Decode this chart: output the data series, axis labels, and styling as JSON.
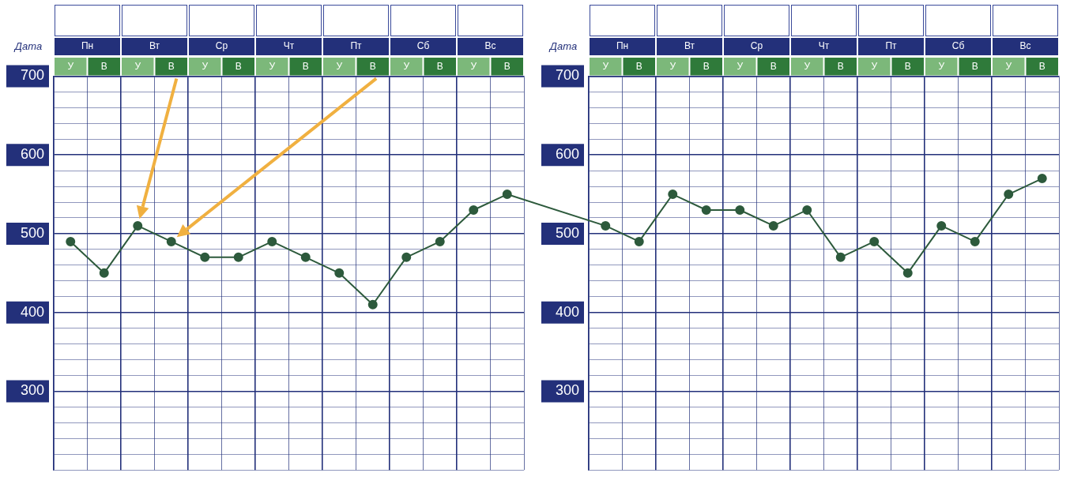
{
  "chart_data": [
    {
      "type": "line",
      "categories": [
        "У",
        "В",
        "У",
        "В",
        "У",
        "В",
        "У",
        "В",
        "У",
        "В",
        "У",
        "В",
        "У",
        "В"
      ],
      "series": [
        {
          "color": "#2d5a3c",
          "values": [
            490,
            450,
            510,
            490,
            470,
            470,
            490,
            470,
            450,
            410,
            470,
            490,
            530,
            550
          ]
        }
      ],
      "ylim": [
        200,
        700
      ],
      "yticks": [
        {
          "value": 200,
          "label": null
        },
        {
          "value": 220,
          "label": null
        },
        {
          "value": 240,
          "label": null
        },
        {
          "value": 260,
          "label": null
        },
        {
          "value": 280,
          "label": null
        },
        300,
        {
          "value": 320,
          "label": null
        },
        {
          "value": 340,
          "label": null
        },
        {
          "value": 360,
          "label": null
        },
        {
          "value": 380,
          "label": null
        },
        400,
        {
          "value": 420,
          "label": null
        },
        {
          "value": 440,
          "label": null
        },
        {
          "value": 460,
          "label": null
        },
        {
          "value": 480,
          "label": null
        },
        500,
        {
          "value": 520,
          "label": null
        },
        {
          "value": 540,
          "label": null
        },
        {
          "value": 560,
          "label": null
        },
        {
          "value": 580,
          "label": null
        },
        600,
        {
          "value": 620,
          "label": null
        },
        {
          "value": 640,
          "label": null
        },
        {
          "value": 660,
          "label": null
        },
        {
          "value": 680,
          "label": null
        },
        700
      ],
      "grid": true,
      "marker": "circle",
      "annotations": [
        "Дата",
        "Пн",
        "Вт",
        "Ср",
        "Чт",
        "Пт",
        "Сб",
        "Вс"
      ]
    },
    {
      "type": "line",
      "categories": [
        "У",
        "В",
        "У",
        "В",
        "У",
        "В",
        "У",
        "В",
        "У",
        "В",
        "У",
        "В",
        "У",
        "В"
      ],
      "series": [
        {
          "color": "#2d5a3c",
          "values": [
            510,
            490,
            550,
            530,
            530,
            510,
            530,
            470,
            490,
            450,
            510,
            490,
            550,
            570
          ]
        }
      ],
      "ylim": [
        200,
        700
      ],
      "yticks": [
        {
          "value": 200,
          "label": null
        },
        {
          "value": 220,
          "label": null
        },
        {
          "value": 240,
          "label": null
        },
        {
          "value": 260,
          "label": null
        },
        {
          "value": 280,
          "label": null
        },
        300,
        {
          "value": 320,
          "label": null
        },
        {
          "value": 340,
          "label": null
        },
        {
          "value": 360,
          "label": null
        },
        {
          "value": 380,
          "label": null
        },
        400,
        {
          "value": 420,
          "label": null
        },
        {
          "value": 440,
          "label": null
        },
        {
          "value": 460,
          "label": null
        },
        {
          "value": 480,
          "label": null
        },
        500,
        {
          "value": 520,
          "label": null
        },
        {
          "value": 540,
          "label": null
        },
        {
          "value": 560,
          "label": null
        },
        {
          "value": 580,
          "label": null
        },
        600,
        {
          "value": 620,
          "label": null
        },
        {
          "value": 640,
          "label": null
        },
        {
          "value": 660,
          "label": null
        },
        {
          "value": 680,
          "label": null
        },
        700
      ],
      "grid": true,
      "marker": "circle",
      "annotations": [
        "Дата",
        "Пн",
        "Вт",
        "Ср",
        "Чт",
        "Пт",
        "Сб",
        "Вс"
      ]
    }
  ]
}
